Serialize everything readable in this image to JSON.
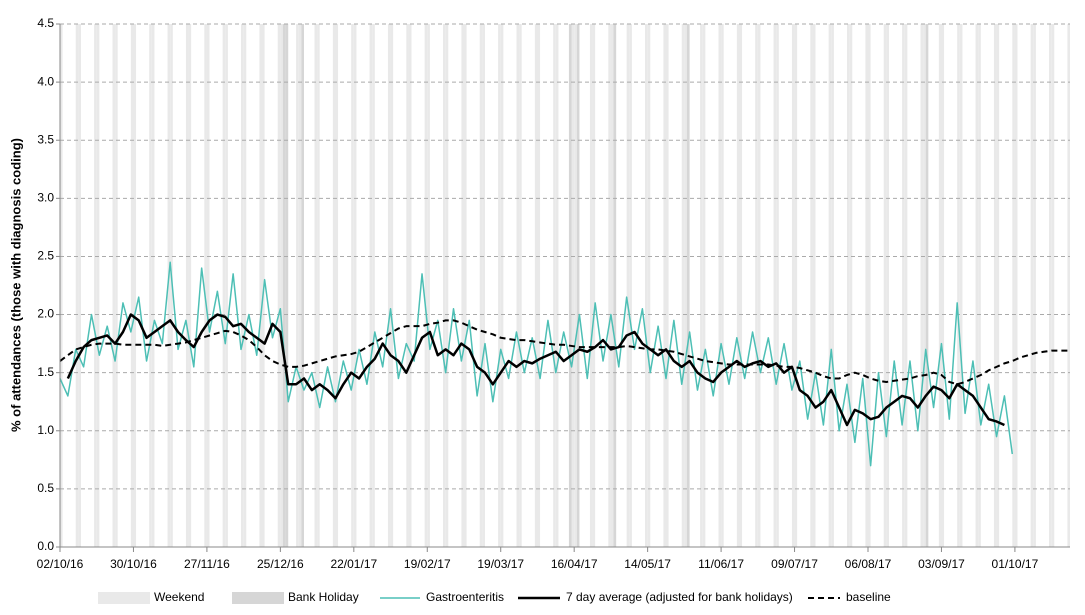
{
  "chart_data": {
    "type": "line",
    "y_label": "% of attendances (those with diagnosis coding)",
    "x": [
      "02/10/16",
      "05/10/16",
      "08/10/16",
      "11/10/16",
      "14/10/16",
      "17/10/16",
      "20/10/16",
      "23/10/16",
      "26/10/16",
      "29/10/16",
      "01/11/16",
      "04/11/16",
      "07/11/16",
      "10/11/16",
      "13/11/16",
      "16/11/16",
      "19/11/16",
      "22/11/16",
      "25/11/16",
      "28/11/16",
      "01/12/16",
      "04/12/16",
      "07/12/16",
      "10/12/16",
      "13/12/16",
      "16/12/16",
      "19/12/16",
      "22/12/16",
      "25/12/16",
      "28/12/16",
      "31/12/16",
      "03/01/17",
      "06/01/17",
      "09/01/17",
      "12/01/17",
      "15/01/17",
      "18/01/17",
      "21/01/17",
      "24/01/17",
      "27/01/17",
      "30/01/17",
      "02/02/17",
      "05/02/17",
      "08/02/17",
      "11/02/17",
      "14/02/17",
      "17/02/17",
      "20/02/17",
      "23/02/17",
      "26/02/17",
      "01/03/17",
      "04/03/17",
      "07/03/17",
      "10/03/17",
      "13/03/17",
      "16/03/17",
      "19/03/17",
      "22/03/17",
      "25/03/17",
      "28/03/17",
      "31/03/17",
      "03/04/17",
      "06/04/17",
      "09/04/17",
      "12/04/17",
      "15/04/17",
      "18/04/17",
      "21/04/17",
      "24/04/17",
      "27/04/17",
      "30/04/17",
      "03/05/17",
      "06/05/17",
      "09/05/17",
      "12/05/17",
      "15/05/17",
      "18/05/17",
      "21/05/17",
      "24/05/17",
      "27/05/17",
      "30/05/17",
      "02/06/17",
      "05/06/17",
      "08/06/17",
      "11/06/17",
      "14/06/17",
      "17/06/17",
      "20/06/17",
      "23/06/17",
      "26/06/17",
      "29/06/17",
      "02/07/17",
      "05/07/17",
      "08/07/17",
      "11/07/17",
      "14/07/17",
      "17/07/17",
      "20/07/17",
      "23/07/17",
      "26/07/17",
      "29/07/17",
      "01/08/17",
      "04/08/17",
      "07/08/17",
      "10/08/17",
      "13/08/17",
      "16/08/17",
      "19/08/17",
      "22/08/17",
      "25/08/17",
      "28/08/17",
      "31/08/17",
      "03/09/17",
      "06/09/17",
      "09/09/17",
      "12/09/17",
      "15/09/17",
      "18/09/17",
      "21/09/17",
      "24/09/17",
      "27/09/17",
      "30/09/17",
      "03/10/17",
      "06/10/17",
      "09/10/17",
      "12/10/17",
      "15/10/17",
      "18/10/17",
      "21/10/17"
    ],
    "series": [
      {
        "name": "Gastroenteritis",
        "color": "#4dbfb5",
        "line_width": 1.5,
        "line_style": "solid",
        "values": [
          1.45,
          1.3,
          1.7,
          1.55,
          2.0,
          1.65,
          1.9,
          1.6,
          2.1,
          1.85,
          2.15,
          1.6,
          1.95,
          1.75,
          2.45,
          1.7,
          1.95,
          1.55,
          2.4,
          1.85,
          2.2,
          1.75,
          2.35,
          1.7,
          2.0,
          1.65,
          2.3,
          1.8,
          2.05,
          1.25,
          1.55,
          1.35,
          1.5,
          1.2,
          1.55,
          1.25,
          1.6,
          1.35,
          1.7,
          1.4,
          1.85,
          1.55,
          2.05,
          1.45,
          1.75,
          1.6,
          2.35,
          1.7,
          1.95,
          1.5,
          2.05,
          1.6,
          1.95,
          1.3,
          1.75,
          1.25,
          1.7,
          1.45,
          1.85,
          1.5,
          1.8,
          1.45,
          1.95,
          1.5,
          1.85,
          1.55,
          2.0,
          1.45,
          2.1,
          1.6,
          2.0,
          1.55,
          2.15,
          1.7,
          2.05,
          1.5,
          1.9,
          1.45,
          1.95,
          1.4,
          1.85,
          1.35,
          1.7,
          1.3,
          1.75,
          1.4,
          1.8,
          1.45,
          1.85,
          1.5,
          1.8,
          1.4,
          1.75,
          1.35,
          1.6,
          1.1,
          1.5,
          1.05,
          1.7,
          1.0,
          1.4,
          0.9,
          1.45,
          0.7,
          1.5,
          0.95,
          1.6,
          1.05,
          1.6,
          1.0,
          1.7,
          1.2,
          1.75,
          1.1,
          2.1,
          1.15,
          1.6,
          1.05,
          1.4,
          0.95,
          1.3,
          0.8,
          null,
          null,
          null,
          null,
          null,
          null,
          null
        ]
      },
      {
        "name": "7 day average (adjusted for bank holidays)",
        "color": "#000000",
        "line_width": 2.5,
        "line_style": "solid",
        "values": [
          null,
          1.45,
          1.6,
          1.72,
          1.78,
          1.8,
          1.82,
          1.75,
          1.85,
          2.0,
          1.95,
          1.8,
          1.85,
          1.9,
          1.95,
          1.85,
          1.78,
          1.72,
          1.85,
          1.95,
          2.0,
          1.98,
          1.9,
          1.92,
          1.85,
          1.8,
          1.75,
          1.92,
          1.85,
          1.4,
          1.4,
          1.45,
          1.35,
          1.4,
          1.35,
          1.28,
          1.4,
          1.5,
          1.45,
          1.55,
          1.62,
          1.75,
          1.65,
          1.6,
          1.5,
          1.65,
          1.8,
          1.85,
          1.65,
          1.7,
          1.65,
          1.75,
          1.7,
          1.55,
          1.5,
          1.4,
          1.5,
          1.6,
          1.55,
          1.6,
          1.58,
          1.62,
          1.65,
          1.68,
          1.6,
          1.65,
          1.7,
          1.68,
          1.72,
          1.78,
          1.7,
          1.72,
          1.82,
          1.85,
          1.75,
          1.7,
          1.65,
          1.7,
          1.6,
          1.55,
          1.6,
          1.5,
          1.45,
          1.42,
          1.5,
          1.55,
          1.6,
          1.55,
          1.58,
          1.6,
          1.55,
          1.58,
          1.5,
          1.55,
          1.35,
          1.3,
          1.2,
          1.25,
          1.35,
          1.2,
          1.05,
          1.18,
          1.15,
          1.1,
          1.12,
          1.2,
          1.25,
          1.3,
          1.28,
          1.2,
          1.3,
          1.38,
          1.35,
          1.28,
          1.4,
          1.35,
          1.3,
          1.2,
          1.1,
          1.08,
          1.05,
          null,
          null,
          null,
          null,
          null,
          null,
          null,
          null
        ]
      },
      {
        "name": "baseline",
        "color": "#000000",
        "line_width": 2,
        "line_style": "dashed",
        "values": [
          1.6,
          1.65,
          1.7,
          1.72,
          1.74,
          1.75,
          1.75,
          1.75,
          1.74,
          1.74,
          1.74,
          1.74,
          1.74,
          1.73,
          1.74,
          1.75,
          1.76,
          1.78,
          1.8,
          1.82,
          1.84,
          1.86,
          1.85,
          1.82,
          1.78,
          1.72,
          1.65,
          1.6,
          1.57,
          1.55,
          1.55,
          1.56,
          1.58,
          1.6,
          1.62,
          1.64,
          1.65,
          1.66,
          1.68,
          1.72,
          1.76,
          1.8,
          1.84,
          1.88,
          1.9,
          1.9,
          1.9,
          1.92,
          1.93,
          1.95,
          1.95,
          1.93,
          1.9,
          1.87,
          1.85,
          1.83,
          1.8,
          1.79,
          1.78,
          1.78,
          1.77,
          1.76,
          1.75,
          1.74,
          1.74,
          1.73,
          1.72,
          1.72,
          1.72,
          1.72,
          1.72,
          1.72,
          1.73,
          1.72,
          1.71,
          1.7,
          1.7,
          1.69,
          1.68,
          1.66,
          1.64,
          1.62,
          1.6,
          1.59,
          1.58,
          1.57,
          1.57,
          1.57,
          1.57,
          1.57,
          1.57,
          1.56,
          1.55,
          1.55,
          1.54,
          1.52,
          1.5,
          1.47,
          1.45,
          1.45,
          1.48,
          1.5,
          1.48,
          1.45,
          1.43,
          1.42,
          1.43,
          1.44,
          1.45,
          1.47,
          1.48,
          1.5,
          1.48,
          1.42,
          1.4,
          1.42,
          1.45,
          1.48,
          1.52,
          1.55,
          1.58,
          1.6,
          1.63,
          1.65,
          1.67,
          1.68,
          1.69,
          1.69,
          1.69
        ]
      }
    ],
    "shading": [
      {
        "name": "Weekend",
        "color": "#e9e9e9"
      },
      {
        "name": "Bank Holiday",
        "color": "#d6d6d6"
      }
    ],
    "bank_holidays": [
      "26/12/16",
      "27/12/16",
      "02/01/17",
      "14/04/17",
      "17/04/17",
      "01/05/17",
      "29/05/17",
      "28/08/17"
    ],
    "xlim": [
      "02/10/16",
      "22/10/17"
    ],
    "xticks": [
      "02/10/16",
      "30/10/16",
      "27/11/16",
      "25/12/16",
      "22/01/17",
      "19/02/17",
      "19/03/17",
      "16/04/17",
      "14/05/17",
      "11/06/17",
      "09/07/17",
      "06/08/17",
      "03/09/17",
      "01/10/17"
    ],
    "ylim": [
      0,
      4.5
    ],
    "yticks": [
      {
        "value": 0,
        "label": "0.0"
      },
      0.5,
      {
        "value": 1,
        "label": "1.0"
      },
      1.5,
      {
        "value": 2,
        "label": "2.0"
      },
      2.5,
      {
        "value": 3,
        "label": "3.0"
      },
      3.5,
      {
        "value": 4,
        "label": "4.0"
      },
      4.5
    ],
    "grid": true
  }
}
